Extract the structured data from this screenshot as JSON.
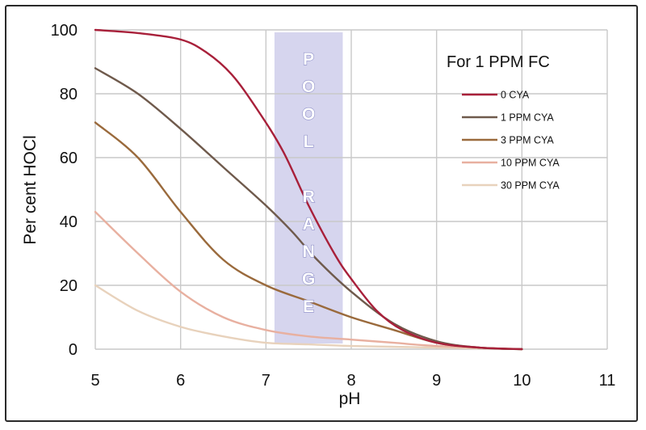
{
  "chart_data": {
    "type": "line",
    "title": "",
    "xlabel": "pH",
    "ylabel": "Per cent HOCl",
    "xlim": [
      5,
      11
    ],
    "ylim": [
      0,
      100
    ],
    "x_ticks": [
      "5",
      "6",
      "7",
      "8",
      "9",
      "10",
      "11"
    ],
    "y_ticks": [
      "0",
      "20",
      "40",
      "60",
      "80",
      "100"
    ],
    "grid": true,
    "legend": {
      "title": "For 1 PPM FC",
      "placement": "top-right"
    },
    "band": {
      "label": "POOL RANGE",
      "x_range": [
        7.1,
        7.9
      ],
      "color": "#d6d5ee"
    },
    "series": [
      {
        "name": "0 CYA",
        "color": "#a8203a",
        "points": [
          [
            5,
            100
          ],
          [
            5.5,
            99
          ],
          [
            6,
            97
          ],
          [
            6.3,
            93
          ],
          [
            6.6,
            86
          ],
          [
            6.9,
            75
          ],
          [
            7.2,
            62
          ],
          [
            7.5,
            45
          ],
          [
            7.8,
            30
          ],
          [
            8,
            22
          ],
          [
            8.3,
            12
          ],
          [
            8.6,
            6
          ],
          [
            9,
            2
          ],
          [
            9.5,
            0.5
          ],
          [
            10,
            0
          ]
        ]
      },
      {
        "name": "1 PPM CYA",
        "color": "#6f5a4c",
        "points": [
          [
            5,
            88
          ],
          [
            5.5,
            80
          ],
          [
            6,
            69
          ],
          [
            6.5,
            57
          ],
          [
            7,
            45
          ],
          [
            7.3,
            37
          ],
          [
            7.6,
            28
          ],
          [
            8,
            18
          ],
          [
            8.5,
            8
          ],
          [
            9,
            2.5
          ],
          [
            9.5,
            0.5
          ],
          [
            10,
            0
          ]
        ]
      },
      {
        "name": "3 PPM CYA",
        "color": "#9a6a3c",
        "points": [
          [
            5,
            71
          ],
          [
            5.5,
            60
          ],
          [
            6,
            43
          ],
          [
            6.5,
            28
          ],
          [
            7,
            20
          ],
          [
            7.5,
            15
          ],
          [
            8,
            10
          ],
          [
            8.5,
            6
          ],
          [
            9,
            2
          ],
          [
            9.5,
            0.5
          ],
          [
            10,
            0
          ]
        ]
      },
      {
        "name": "10 PPM CYA",
        "color": "#e8b0a0",
        "points": [
          [
            5,
            43
          ],
          [
            5.5,
            30
          ],
          [
            6,
            18
          ],
          [
            6.5,
            10
          ],
          [
            7,
            6
          ],
          [
            7.5,
            4
          ],
          [
            8,
            3
          ],
          [
            8.5,
            2
          ],
          [
            9,
            1
          ],
          [
            10,
            0
          ]
        ]
      },
      {
        "name": "30 PPM CYA",
        "color": "#e8d2bc",
        "points": [
          [
            5,
            20
          ],
          [
            5.5,
            12
          ],
          [
            6,
            7
          ],
          [
            6.5,
            4
          ],
          [
            7,
            2
          ],
          [
            7.5,
            1.5
          ],
          [
            8,
            1
          ],
          [
            9,
            0.5
          ],
          [
            10,
            0
          ]
        ]
      }
    ]
  }
}
